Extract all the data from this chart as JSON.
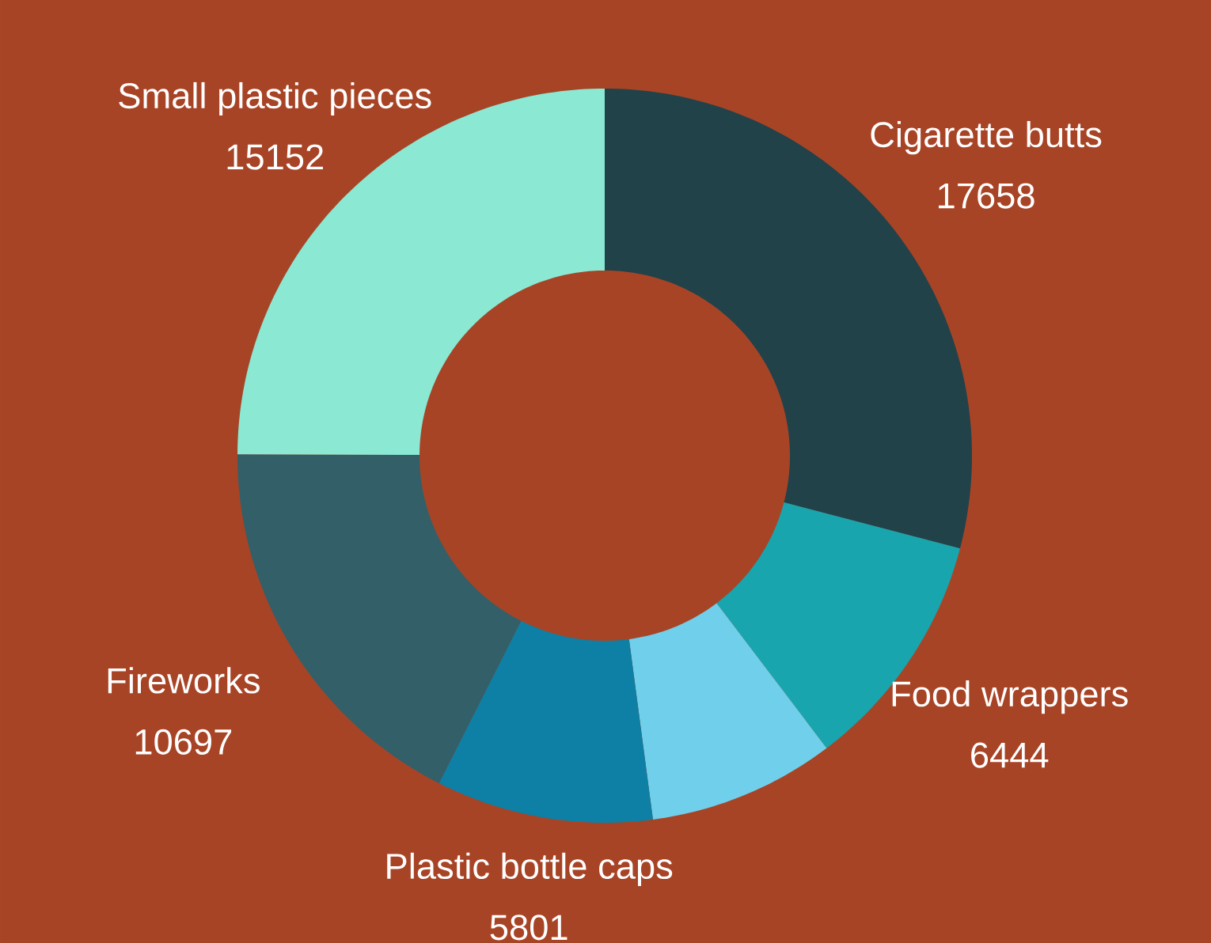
{
  "chart_data": {
    "type": "donut",
    "categories": [
      "Cigarette butts",
      "Food wrappers",
      null,
      "Plastic bottle caps",
      "Fireworks",
      "Small plastic pieces"
    ],
    "values": [
      17658,
      6444,
      5000,
      5801,
      10697,
      15152
    ],
    "value_labels": [
      "17658",
      "6444",
      null,
      "5801",
      "10697",
      "15152"
    ],
    "colors": [
      "#214249",
      "#18a5ae",
      "#70cfea",
      "#0e7fa5",
      "#335f68",
      "#8ae8d3"
    ]
  }
}
